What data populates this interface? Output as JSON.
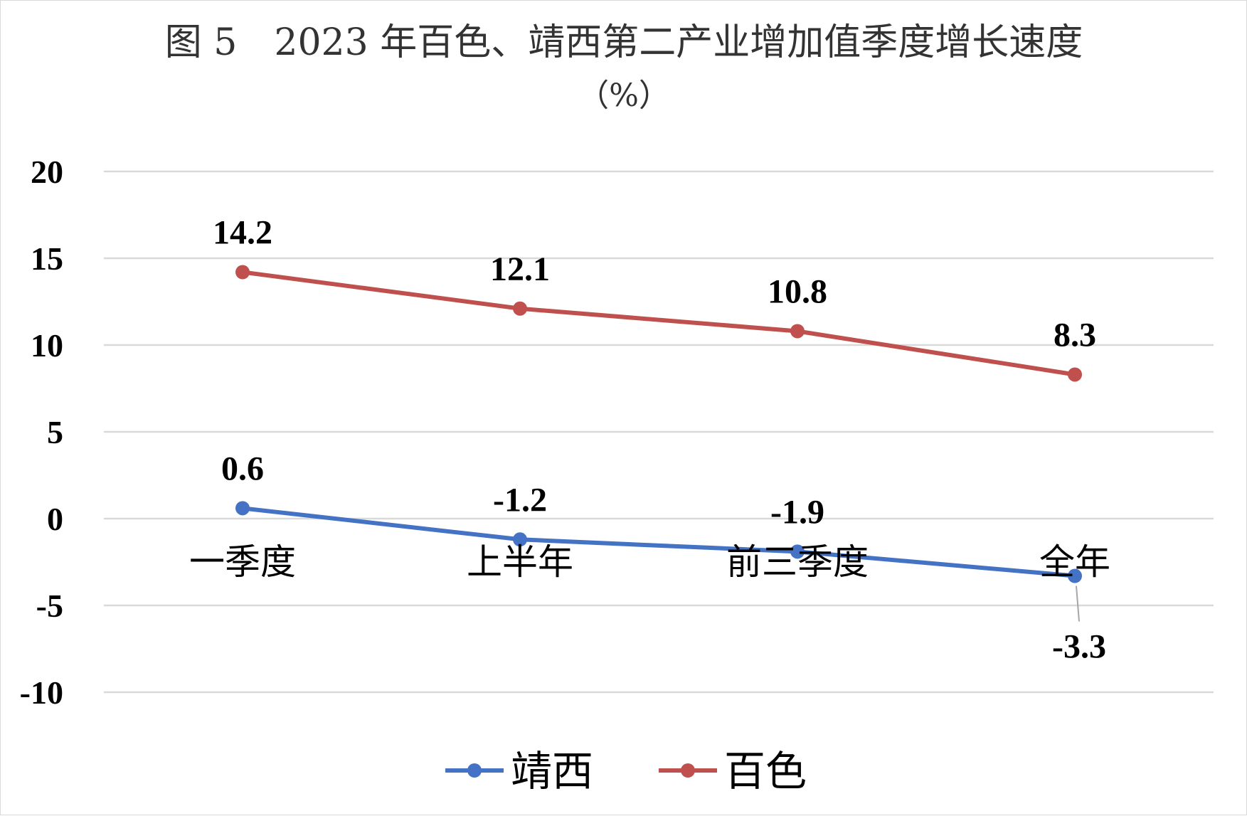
{
  "chart_data": {
    "type": "line",
    "title": "图 5　2023 年百色、靖西第二产业增加值季度增长速度",
    "subtitle": "（%）",
    "xlabel": "",
    "ylabel": "",
    "categories": [
      "一季度",
      "上半年",
      "前三季度",
      "全年"
    ],
    "ylim": [
      -10,
      20
    ],
    "yticks": [
      20,
      15,
      10,
      5,
      0,
      -5,
      -10
    ],
    "grid": true,
    "legend_position": "bottom",
    "series": [
      {
        "name": "靖西",
        "values": [
          0.6,
          -1.2,
          -1.9,
          -3.3
        ],
        "labels": [
          "0.6",
          "-1.2",
          "-1.9",
          "-3.3"
        ],
        "color": "#4472c4"
      },
      {
        "name": "百色",
        "values": [
          14.2,
          12.1,
          10.8,
          8.3
        ],
        "labels": [
          "14.2",
          "12.1",
          "10.8",
          "8.3"
        ],
        "color": "#c0504d"
      }
    ]
  }
}
